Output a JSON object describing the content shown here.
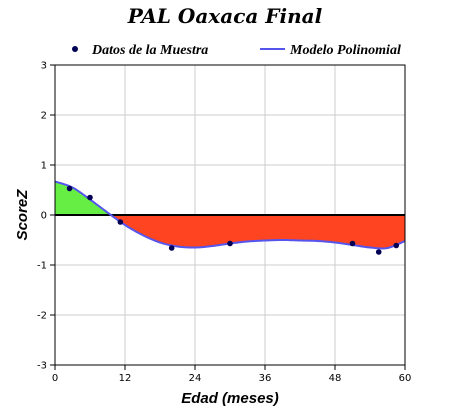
{
  "chart_data": {
    "type": "line",
    "title": "PAL Oaxaca Final",
    "xlabel": "Edad (meses)",
    "ylabel": "ScoreZ",
    "xlim": [
      0,
      60
    ],
    "ylim": [
      -3,
      3
    ],
    "xticks": [
      0,
      12,
      24,
      36,
      48,
      60
    ],
    "yticks": [
      -3,
      -2,
      -1,
      0,
      1,
      2,
      3
    ],
    "grid": true,
    "legend_position": "top",
    "series": [
      {
        "name": "Datos de la Muestra",
        "type": "scatter",
        "x": [
          2.5,
          6,
          11.2,
          20,
          30,
          51,
          55.5,
          58.5
        ],
        "y": [
          0.53,
          0.35,
          -0.14,
          -0.66,
          -0.57,
          -0.57,
          -0.74,
          -0.61
        ]
      },
      {
        "name": "Modelo Polinomial",
        "type": "line",
        "x": [
          0,
          3,
          6,
          9,
          12,
          15,
          18,
          21,
          24,
          27,
          30,
          33,
          36,
          39,
          42,
          45,
          48,
          51,
          54,
          57,
          60
        ],
        "y": [
          0.67,
          0.55,
          0.31,
          0.05,
          -0.2,
          -0.4,
          -0.55,
          -0.63,
          -0.65,
          -0.62,
          -0.57,
          -0.53,
          -0.51,
          -0.5,
          -0.51,
          -0.52,
          -0.55,
          -0.6,
          -0.65,
          -0.66,
          -0.52
        ]
      }
    ],
    "colors": {
      "points": "#000055",
      "curve": "#5555ee",
      "fill_positive": "#66ee44",
      "fill_negative": "#ff4422",
      "zero_line": "#000000",
      "grid": "#cccccc"
    }
  }
}
